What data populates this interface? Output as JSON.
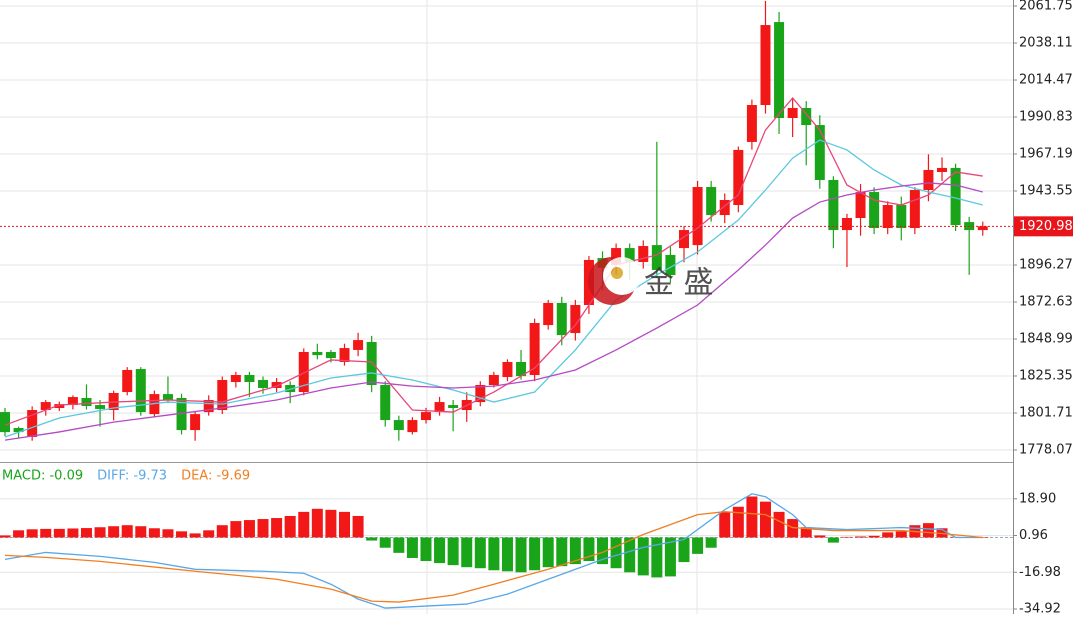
{
  "chart_data": {
    "type": "candlestick",
    "up_color": "#f21818",
    "down_color": "#1aa41a",
    "open": [
      1802.3,
      1792.1,
      1786.4,
      1803.6,
      1804.9,
      1806.8,
      1811.3,
      1806.8,
      1803.6,
      1815.1,
      1829.8,
      1801.0,
      1813.8,
      1811.3,
      1790.8,
      1802.3,
      1803.6,
      1821.5,
      1826.0,
      1822.8,
      1817.7,
      1819.6,
      1815.1,
      1840.7,
      1840.7,
      1834.3,
      1842.0,
      1847.1,
      1819.6,
      1797.2,
      1789.5,
      1797.2,
      1802.3,
      1806.8,
      1803.6,
      1808.7,
      1819.6,
      1824.7,
      1834.3,
      1826.0,
      1857.9,
      1872.0,
      1852.8,
      1870.7,
      1900.7,
      1896.3,
      1907.1,
      1898.2,
      1909.0,
      1902.7,
      1907.1,
      1909.0,
      1946.1,
      1928.2,
      1934.6,
      1974.9,
      1998.5,
      2051.5,
      1990.2,
      1996.6,
      1985.7,
      1950.6,
      1918.6,
      1926.3,
      1942.9,
      1919.9,
      1934.6,
      1919.9,
      1944.2,
      1955.7,
      1958.3,
      1923.7,
      1918.6
    ],
    "high": [
      1804.9,
      1793,
      1806,
      1810,
      1809,
      1813,
      1820,
      1810,
      1816,
      1831,
      1831,
      1816,
      1825,
      1814,
      1803,
      1813,
      1825,
      1828,
      1828,
      1825,
      1824,
      1822,
      1843,
      1846,
      1842,
      1846,
      1853,
      1851,
      1822,
      1800,
      1799,
      1805,
      1812,
      1810,
      1815,
      1822,
      1828,
      1836,
      1842,
      1862,
      1874,
      1876,
      1874,
      1902,
      1905,
      1910,
      1910,
      1912,
      1975,
      1908,
      1921,
      1950,
      1950,
      1942,
      1972,
      2002,
      2065,
      2058,
      2003,
      2001,
      1992,
      1953,
      1929,
      1948,
      1946,
      1937,
      1940,
      1946,
      1967,
      1965,
      1961,
      1927,
      1924
    ],
    "low": [
      1787,
      1786,
      1784,
      1800,
      1803,
      1804,
      1804,
      1793,
      1797,
      1813,
      1800,
      1799,
      1808,
      1788,
      1784,
      1800,
      1801,
      1818,
      1812,
      1814,
      1815,
      1808,
      1813,
      1836,
      1834,
      1832,
      1838,
      1815,
      1793,
      1784,
      1788,
      1795,
      1800,
      1790,
      1796,
      1806,
      1818,
      1822,
      1823,
      1822,
      1855,
      1845,
      1848,
      1865,
      1880,
      1890,
      1887,
      1894,
      1888,
      1885,
      1898,
      1903,
      1924,
      1923,
      1930,
      1970,
      1993,
      1980,
      1978,
      1960,
      1945,
      1907,
      1895,
      1915,
      1916,
      1916,
      1912,
      1916,
      1937,
      1950,
      1918,
      1890,
      1915
    ],
    "close": [
      1789.5,
      1789.5,
      1803.6,
      1808.7,
      1807.4,
      1811.9,
      1806.2,
      1804.3,
      1814.5,
      1829.2,
      1802.3,
      1813.8,
      1810.0,
      1790.8,
      1801.0,
      1810.0,
      1822.8,
      1826.0,
      1821.5,
      1817.7,
      1821.5,
      1815.1,
      1840.7,
      1838.7,
      1836.8,
      1843.2,
      1848.3,
      1819.6,
      1797.2,
      1790.8,
      1797.2,
      1802.3,
      1808.7,
      1804.9,
      1810.0,
      1819.6,
      1826.0,
      1834.3,
      1825.3,
      1859.2,
      1872.0,
      1851.5,
      1870.7,
      1899.5,
      1894.4,
      1907.1,
      1898.2,
      1908.4,
      1893.1,
      1889.9,
      1918.6,
      1946.1,
      1928.2,
      1937.8,
      1969.8,
      1998.5,
      2049.6,
      1990.2,
      1996.6,
      1985.7,
      1950.6,
      1918.6,
      1926.3,
      1942.9,
      1919.9,
      1934.6,
      1919.9,
      1944.2,
      1957.0,
      1958.3,
      1921.8,
      1918.6,
      1921.0
    ],
    "lines": [
      {
        "color": "#e8467a",
        "x": [
          0,
          4,
          8,
          12,
          16,
          20,
          24,
          27,
          30,
          33,
          36,
          39,
          42,
          45,
          48,
          51,
          54,
          56,
          58,
          60,
          62,
          64,
          66,
          68,
          70,
          72
        ],
        "values": [
          1794.0,
          1806.8,
          1808.7,
          1810.0,
          1808.7,
          1818.9,
          1835.6,
          1834.3,
          1803.6,
          1802.3,
          1815.1,
          1830.4,
          1857.9,
          1896.3,
          1902.7,
          1919.9,
          1941.0,
          1982.5,
          2003.0,
          1982.5,
          1947.4,
          1937.8,
          1934.6,
          1941.0,
          1955.7,
          1953.1
        ]
      },
      {
        "color": "#5ac8e0",
        "x": [
          0,
          4,
          8,
          12,
          16,
          20,
          24,
          27,
          30,
          33,
          36,
          39,
          42,
          45,
          48,
          51,
          54,
          56,
          58,
          60,
          62,
          64,
          66,
          68,
          70,
          72
        ],
        "values": [
          1786.4,
          1798.5,
          1804.9,
          1808.7,
          1807.4,
          1814.5,
          1824.1,
          1827.3,
          1822.8,
          1816.4,
          1808.7,
          1815.1,
          1842.0,
          1873.9,
          1889.9,
          1904.6,
          1925.0,
          1944.2,
          1964.6,
          1976.1,
          1969.8,
          1957.0,
          1947.4,
          1942.9,
          1939.1,
          1934.6
        ]
      },
      {
        "color": "#b44ac4",
        "x": [
          0,
          4,
          8,
          12,
          16,
          20,
          24,
          27,
          30,
          33,
          36,
          39,
          42,
          45,
          48,
          51,
          54,
          56,
          58,
          60,
          62,
          64,
          66,
          68,
          70,
          72
        ],
        "values": [
          1784.4,
          1789.6,
          1795.9,
          1800.4,
          1804.9,
          1810.0,
          1817.7,
          1821.5,
          1818.9,
          1817.7,
          1818.9,
          1822.8,
          1829.2,
          1842.0,
          1856.0,
          1870.7,
          1893.1,
          1909.0,
          1926.3,
          1936.5,
          1941.0,
          1944.2,
          1946.7,
          1948.7,
          1947.4,
          1942.9
        ]
      }
    ],
    "ylim": [
      1770.4,
      2065.6
    ],
    "yticks": [
      2061.75,
      2038.11,
      2014.47,
      1990.83,
      1967.19,
      1943.55,
      1896.27,
      1872.63,
      1848.99,
      1825.35,
      1801.71,
      1778.07
    ],
    "grid": true,
    "last_price": 1920.98,
    "last_price_color": "#e8141a",
    "watermark": "金 盛",
    "macd": {
      "legend": [
        {
          "text": "MACD: -0.09",
          "color": "#1aa41a"
        },
        {
          "text": "DIFF: -9.73",
          "color": "#59a7e6"
        },
        {
          "text": "DEA: -9.69",
          "color": "#f07f22"
        }
      ],
      "histogram": [
        1.0,
        3.5,
        4.0,
        4.2,
        4.2,
        4.4,
        4.6,
        5.0,
        5.5,
        6.0,
        5.5,
        4.5,
        4.0,
        3.0,
        2.0,
        3.5,
        6.0,
        8.0,
        8.5,
        9.0,
        9.5,
        10.5,
        12.5,
        14.0,
        13.5,
        12.5,
        10.5,
        -1.5,
        -5,
        -7.5,
        -10,
        -11.5,
        -12.5,
        -13.5,
        -14.5,
        -15,
        -16,
        -16.5,
        -17,
        -16,
        -14.5,
        -14,
        -13,
        -11.5,
        -13,
        -15,
        -17,
        -18.5,
        -19.5,
        -19,
        -12,
        -8,
        -5,
        12.5,
        15,
        20,
        17.5,
        12.5,
        9,
        5,
        1,
        -2.5,
        0.3,
        0.5,
        0.8,
        2.5,
        3,
        6,
        7,
        4.5,
        0.3,
        0.2,
        0.2
      ],
      "diff": {
        "color": "#59a7e6",
        "x": [
          0,
          3,
          7,
          11,
          14,
          19,
          22,
          24,
          26,
          28,
          31,
          34,
          37,
          41,
          44,
          47,
          50,
          53,
          55,
          56,
          58,
          59,
          62,
          66,
          69,
          70,
          72
        ],
        "values": [
          -10.68,
          -7.29,
          -9.23,
          -12.14,
          -15.53,
          -16.5,
          -17.47,
          -22.81,
          -30.08,
          -34.45,
          -33.48,
          -32.51,
          -27.66,
          -17.96,
          -10.68,
          -4.86,
          -0.98,
          13.57,
          21.33,
          19.88,
          11.15,
          4.84,
          3.87,
          4.84,
          3.87,
          0,
          0
        ]
      },
      "dea": {
        "color": "#f07f22",
        "x": [
          0,
          3,
          7,
          14,
          20,
          24,
          27,
          29,
          33,
          36,
          40,
          44,
          47,
          51,
          53,
          56,
          58,
          61,
          66,
          69,
          72
        ],
        "values": [
          -8.74,
          -9.71,
          -11.65,
          -16.5,
          -20.38,
          -25.23,
          -31.05,
          -31.53,
          -28.14,
          -22.81,
          -15.53,
          -7.29,
          1.45,
          11.15,
          12.6,
          11.15,
          4.84,
          3.39,
          3.39,
          1.93,
          0
        ]
      },
      "y2lim": [
        -37.35,
        36.36
      ],
      "y2ticks": [
        {
          "value": 18.9,
          "label": "18.90"
        },
        0.96,
        -16.98,
        -34.92
      ]
    }
  }
}
